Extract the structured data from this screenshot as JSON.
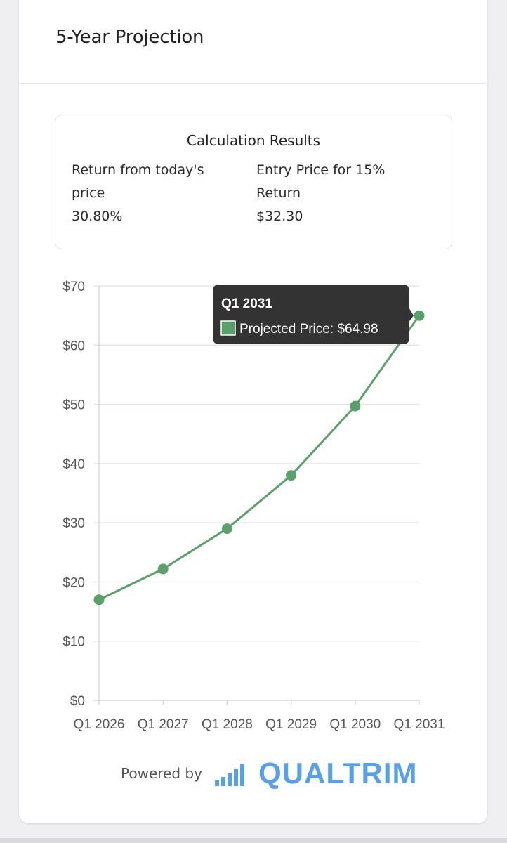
{
  "card": {
    "title": "5-Year Projection"
  },
  "results": {
    "title": "Calculation Results",
    "return_label": "Return from today's price",
    "return_value": "30.80%",
    "entry_label": "Entry Price for 15% Return",
    "entry_value": "$32.30"
  },
  "chart_data": {
    "type": "line",
    "title": "",
    "xlabel": "",
    "ylabel": "",
    "categories": [
      "Q1 2026",
      "Q1 2027",
      "Q1 2028",
      "Q1 2029",
      "Q1 2030",
      "Q1 2031"
    ],
    "series": [
      {
        "name": "Projected Price",
        "values": [
          17.0,
          22.2,
          29.0,
          38.0,
          49.7,
          64.98
        ],
        "color": "#5aa06a"
      }
    ],
    "y_ticks": [
      "$0",
      "$10",
      "$20",
      "$30",
      "$40",
      "$50",
      "$60",
      "$70"
    ],
    "ylim": [
      0,
      70
    ],
    "grid": true,
    "legend": "none"
  },
  "tooltip": {
    "title": "Q1 2031",
    "label": "Projected Price: $64.98",
    "swatch_color": "#5aa06a",
    "background": "#333333"
  },
  "footer": {
    "powered_by": "Powered by",
    "brand": "QUALTRIM",
    "brand_color": "#5aa0e6",
    "brand_icon": "bar-chart-icon"
  }
}
